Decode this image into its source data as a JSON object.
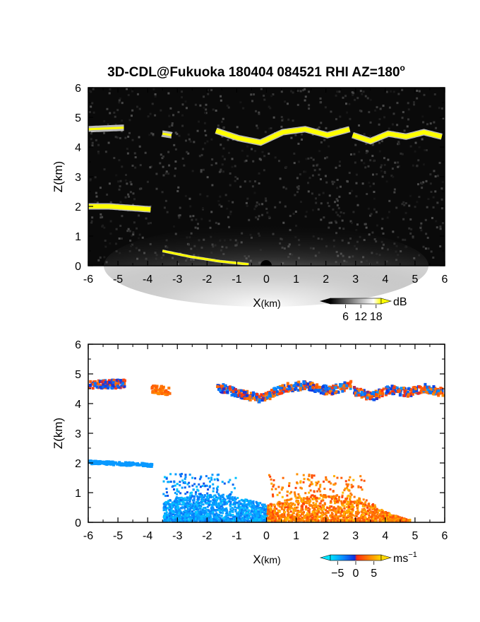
{
  "figure": {
    "title": "3D-CDL@Fukuoka 180404 084521 RHI AZ=180",
    "title_suffix": "o"
  },
  "chart_data": [
    {
      "type": "heatmap",
      "quantity": "backscatter",
      "xlabel_main": "X",
      "xlabel_unit": "(km)",
      "ylabel": "Z(km)",
      "xlim": [
        -6,
        6
      ],
      "ylim": [
        0,
        6
      ],
      "xticks": [
        "-6",
        "-5",
        "-4",
        "-3",
        "-2",
        "-1",
        "0",
        "1",
        "2",
        "3",
        "4",
        "5",
        "6"
      ],
      "yticks": [
        "0",
        "1",
        "2",
        "3",
        "4",
        "5",
        "6"
      ],
      "grid": false,
      "colorbar": {
        "unit": "dB",
        "ticks": [
          "6",
          "12",
          "18"
        ],
        "range": [
          0,
          20
        ],
        "colors": [
          "#000000",
          "#ffffff",
          "#ffff00"
        ]
      },
      "features": [
        {
          "name": "upper cloud layer",
          "x": [
            -6,
            -4.8
          ],
          "z": [
            4.6,
            4.65
          ],
          "strength": "medium"
        },
        {
          "name": "upper cloud layer",
          "x": [
            -3.5,
            -3.2
          ],
          "z": [
            4.45,
            4.4
          ],
          "strength": "medium"
        },
        {
          "name": "upper cloud layer",
          "x": [
            -1.7,
            2.8
          ],
          "z": [
            4.55,
            4.3,
            4.15,
            4.5,
            4.6,
            4.4,
            4.6
          ],
          "strength": "strong"
        },
        {
          "name": "upper cloud layer",
          "x": [
            2.9,
            5.9
          ],
          "z": [
            4.4,
            4.2,
            4.45,
            4.35,
            4.5,
            4.35
          ],
          "strength": "strong"
        },
        {
          "name": "lower cloud layer",
          "x": [
            -6,
            -3.9
          ],
          "z": [
            2.0,
            2.0,
            1.95,
            1.9
          ],
          "strength": "strong"
        },
        {
          "name": "boundary layer",
          "x": [
            -3.5,
            -0.6
          ],
          "z": [
            0.5,
            0.3,
            0.15,
            0.05
          ],
          "strength": "strong"
        }
      ]
    },
    {
      "type": "heatmap",
      "quantity": "radial velocity",
      "xlabel_main": "X",
      "xlabel_unit": "(km)",
      "ylabel": "Z(km)",
      "xlim": [
        -6,
        6
      ],
      "ylim": [
        0,
        6
      ],
      "xticks": [
        "-6",
        "-5",
        "-4",
        "-3",
        "-2",
        "-1",
        "0",
        "1",
        "2",
        "3",
        "4",
        "5",
        "6"
      ],
      "yticks": [
        "0",
        "1",
        "2",
        "3",
        "4",
        "5",
        "6"
      ],
      "grid": false,
      "colorbar": {
        "unit": "ms",
        "unit_exponent": "−1",
        "ticks": [
          "−5",
          "0",
          "5"
        ],
        "range": [
          -7,
          7
        ],
        "colors": [
          "#00e5ff",
          "#0a8cff",
          "#1030e0",
          "#ff2a10",
          "#ff8a00",
          "#ffd800"
        ]
      },
      "features": [
        {
          "name": "upper cloud layer",
          "x": [
            -6,
            -4.8
          ],
          "z": [
            4.6,
            4.65
          ],
          "velocity": [
            -3,
            3
          ]
        },
        {
          "name": "upper cloud layer",
          "x": [
            -3.9,
            -3.3
          ],
          "z": [
            4.45,
            4.4
          ],
          "velocity": [
            2,
            4
          ]
        },
        {
          "name": "upper cloud layer",
          "x": [
            -1.7,
            2.8
          ],
          "z": [
            4.55,
            4.3,
            4.15,
            4.5,
            4.6,
            4.4,
            4.6
          ],
          "velocity": [
            -4,
            4
          ]
        },
        {
          "name": "upper cloud layer",
          "x": [
            2.9,
            5.9
          ],
          "z": [
            4.4,
            4.2,
            4.45,
            4.35,
            4.5,
            4.35
          ],
          "velocity": [
            -4,
            4
          ]
        },
        {
          "name": "lower cloud layer",
          "x": [
            -6,
            -3.9
          ],
          "z": [
            2.0,
            1.9
          ],
          "velocity": [
            -4,
            -4
          ]
        },
        {
          "name": "boundary layer, negative side",
          "x": [
            -3.5,
            0
          ],
          "z": [
            0.0,
            1.5
          ],
          "velocity": [
            -6,
            -1
          ]
        },
        {
          "name": "boundary layer, positive side",
          "x": [
            0,
            4.8
          ],
          "z": [
            0.0,
            1.5
          ],
          "velocity": [
            1,
            6
          ]
        }
      ]
    }
  ]
}
